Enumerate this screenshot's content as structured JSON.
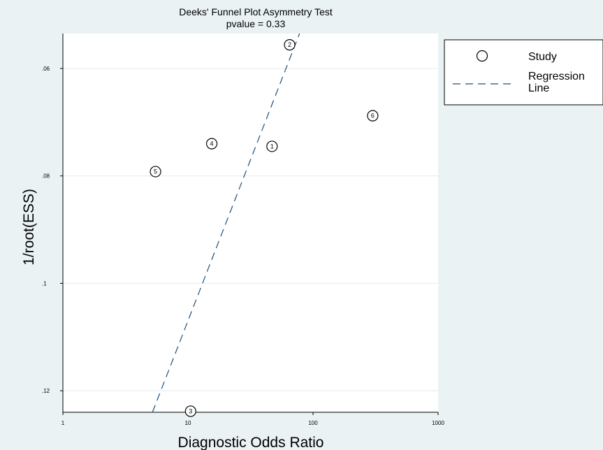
{
  "chart_data": {
    "type": "scatter",
    "title": "Deeks' Funnel Plot Asymmetry Test",
    "subtitle": "pvalue =   0.33",
    "xlabel": "Diagnostic Odds Ratio",
    "ylabel": "1/root(ESS)",
    "x_scale": "log",
    "xlim": [
      1,
      1000
    ],
    "ylim": [
      0.124,
      0.0535
    ],
    "y_reversed": true,
    "x_ticks": [
      {
        "value": 1,
        "label": "1"
      },
      {
        "value": 10,
        "label": "10"
      },
      {
        "value": 100,
        "label": "100"
      },
      {
        "value": 1000,
        "label": "1000"
      }
    ],
    "y_ticks": [
      {
        "value": 0.06,
        "label": ".06"
      },
      {
        "value": 0.08,
        "label": ".08"
      },
      {
        "value": 0.1,
        "label": ".1"
      },
      {
        "value": 0.12,
        "label": ".12"
      }
    ],
    "grid": "horizontal",
    "series": [
      {
        "name": "Study",
        "marker": "circle",
        "points": [
          {
            "label": "1",
            "x": 47,
            "y": 0.0745
          },
          {
            "label": "2",
            "x": 65,
            "y": 0.0556
          },
          {
            "label": "3",
            "x": 10.5,
            "y": 0.1238
          },
          {
            "label": "4",
            "x": 15.5,
            "y": 0.074
          },
          {
            "label": "5",
            "x": 5.5,
            "y": 0.0792
          },
          {
            "label": "6",
            "x": 300,
            "y": 0.0688
          }
        ]
      },
      {
        "name": "Regression Line",
        "style": "dashed",
        "color": "#1f4e79",
        "points": [
          {
            "x": 5.2,
            "y": 0.124
          },
          {
            "x": 78,
            "y": 0.0535
          }
        ]
      }
    ],
    "legend": {
      "position": "right",
      "entries": [
        {
          "marker": "circle",
          "label": "Study"
        },
        {
          "marker": "dashed-line",
          "label_lines": [
            "Regression",
            "Line"
          ]
        }
      ]
    },
    "colors": {
      "background": "#eaf2f3",
      "plot_background": "#ffffff",
      "grid": "#e3ecee",
      "regression": "#1f4e79"
    }
  }
}
